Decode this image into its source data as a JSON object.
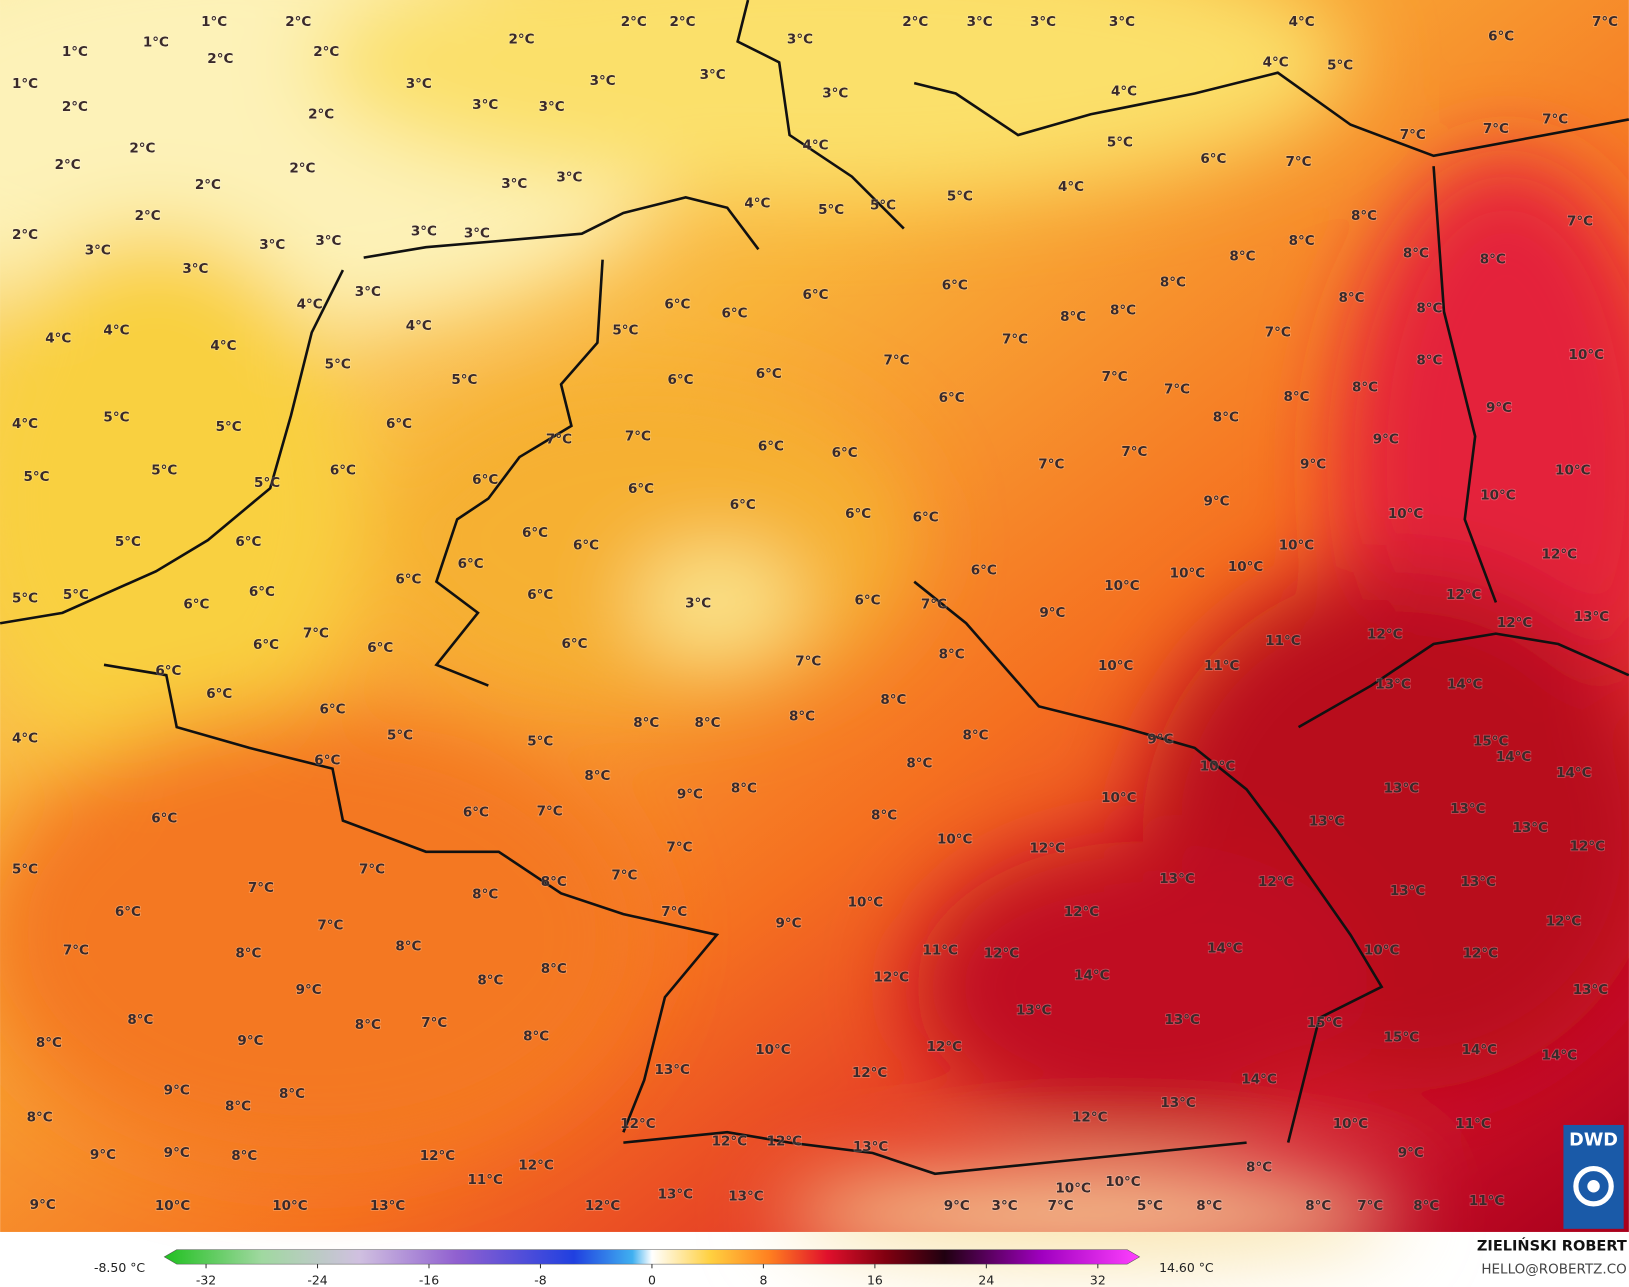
{
  "map": {
    "labels": [
      "1°C",
      "2°C",
      "1°C",
      "1°C",
      "2°C",
      "2°C",
      "2°C",
      "2°C",
      "2°C",
      "3°C",
      "2°C",
      "3°C",
      "3°C",
      "3°C",
      "4°C",
      "7°C",
      "6°C",
      "1°C",
      "2°C",
      "3°C",
      "3°C",
      "3°C",
      "3°C",
      "3°C",
      "2°C",
      "3°C",
      "4°C",
      "5°C",
      "4°C",
      "2°C",
      "2°C",
      "2°C",
      "2°C",
      "3°C",
      "3°C",
      "4°C",
      "5°C",
      "6°C",
      "7°C",
      "7°C",
      "7°C",
      "7°C",
      "4°C",
      "2°C",
      "2°C",
      "3°C",
      "3°C",
      "3°C",
      "3°C",
      "3°C",
      "4°C",
      "5°C",
      "5°C",
      "5°C",
      "3°C",
      "4°C",
      "3°C",
      "8°C",
      "7°C",
      "8°C",
      "8°C",
      "8°C",
      "8°C",
      "6°C",
      "6°C",
      "8°C",
      "8°C",
      "8°C",
      "4°C",
      "4°C",
      "4°C",
      "4°C",
      "5°C",
      "6°C",
      "6°C",
      "8°C",
      "8°C",
      "7°C",
      "7°C",
      "5°C",
      "6°C",
      "6°C",
      "7°C",
      "7°C",
      "7°C",
      "8°C",
      "8°C",
      "8°C",
      "10°C",
      "4°C",
      "5°C",
      "5°C",
      "5°C",
      "6°C",
      "6°C",
      "8°C",
      "9°C",
      "9°C",
      "5°C",
      "5°C",
      "5°C",
      "6°C",
      "6°C",
      "7°C",
      "7°C",
      "6°C",
      "6°C",
      "7°C",
      "7°C",
      "9°C",
      "10°C",
      "6°C",
      "6°C",
      "6°C",
      "6°C",
      "9°C",
      "10°C",
      "10°C",
      "5°C",
      "6°C",
      "6°C",
      "6°C",
      "6°C",
      "6°C",
      "6°C",
      "10°C",
      "10°C",
      "10°C",
      "12°C",
      "5°C",
      "5°C",
      "6°C",
      "6°C",
      "6°C",
      "3°C",
      "6°C",
      "7°C",
      "9°C",
      "10°C",
      "12°C",
      "13°C",
      "7°C",
      "6°C",
      "6°C",
      "6°C",
      "8°C",
      "10°C",
      "11°C",
      "11°C",
      "12°C",
      "12°C",
      "6°C",
      "6°C",
      "7°C",
      "13°C",
      "14°C",
      "6°C",
      "5°C",
      "5°C",
      "8°C",
      "8°C",
      "8°C",
      "8°C",
      "8°C",
      "9°C",
      "15°C",
      "14°C",
      "4°C",
      "6°C",
      "8°C",
      "8°C",
      "10°C",
      "14°C",
      "6°C",
      "6°C",
      "7°C",
      "9°C",
      "8°C",
      "8°C",
      "10°C",
      "13°C",
      "13°C",
      "5°C",
      "7°C",
      "7°C",
      "7°C",
      "10°C",
      "12°C",
      "13°C",
      "13°C",
      "12°C",
      "7°C",
      "8°C",
      "8°C",
      "13°C",
      "12°C",
      "13°C",
      "13°C",
      "6°C",
      "7°C",
      "7°C",
      "9°C",
      "10°C",
      "12°C",
      "12°C",
      "7°C",
      "8°C",
      "8°C",
      "8°C",
      "11°C",
      "12°C",
      "14°C",
      "10°C",
      "12°C",
      "9°C",
      "8°C",
      "12°C",
      "14°C",
      "13°C",
      "8°C",
      "9°C",
      "8°C",
      "7°C",
      "8°C",
      "10°C",
      "12°C",
      "13°C",
      "13°C",
      "15°C",
      "15°C",
      "14°C",
      "14°C",
      "8°C",
      "13°C",
      "12°C",
      "9°C",
      "8°C",
      "8°C",
      "8°C",
      "13°C",
      "14°C",
      "12°C",
      "12°C",
      "10°C",
      "11°C",
      "9°C",
      "9°C",
      "8°C",
      "12°C",
      "12°C",
      "12°C",
      "12°C",
      "13°C",
      "8°C",
      "9°C",
      "11°C",
      "10°C",
      "10°C",
      "9°C",
      "10°C",
      "10°C",
      "13°C",
      "12°C",
      "13°C",
      "13°C",
      "9°C",
      "3°C",
      "7°C",
      "5°C",
      "8°C",
      "8°C",
      "7°C",
      "8°C",
      "11°C"
    ]
  },
  "legend": {
    "min_label": "-8.50 °C",
    "max_label": "14.60 °C",
    "ticks": [
      -32,
      -24,
      -16,
      -8,
      0,
      8,
      16,
      24,
      32
    ],
    "lim": [
      -35,
      35
    ]
  },
  "credit": {
    "author": "ZIELIŃSKI ROBERT",
    "email": "HELLO@ROBERTZ.CO"
  },
  "logo": {
    "text": "DWD"
  }
}
